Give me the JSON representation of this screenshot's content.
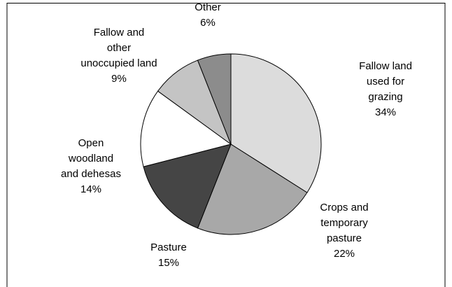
{
  "chart_data": {
    "type": "pie",
    "categories": [
      "Fallow land used for grazing",
      "Crops and temporary pasture",
      "Pasture",
      "Open woodland and dehesas",
      "Fallow and other unoccupied land",
      "Other"
    ],
    "values": [
      34,
      22,
      15,
      14,
      9,
      6
    ],
    "value_labels": [
      "34%",
      "22%",
      "15%",
      "14%",
      "9%",
      "6%"
    ],
    "colors": [
      "#dcdcdc",
      "#a8a8a8",
      "#454545",
      "#ffffff",
      "#c4c4c4",
      "#8c8c8c"
    ]
  }
}
